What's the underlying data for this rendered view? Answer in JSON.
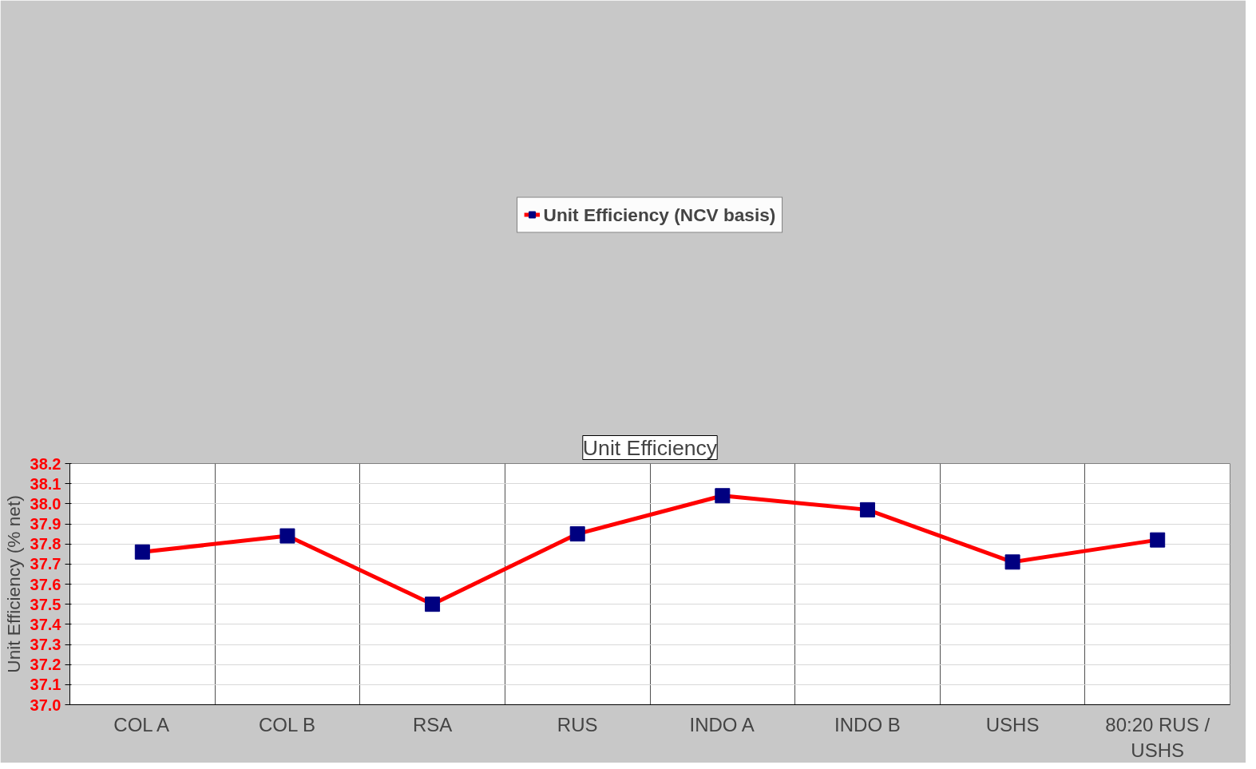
{
  "chart_data": {
    "type": "line",
    "title": "Unit Efficiency",
    "ylabel": "Unit Efficiency (% net)",
    "categories": [
      "COL A",
      "COL B",
      "RSA",
      "RUS",
      "INDO A",
      "INDO B",
      "USHS",
      "80:20 RUS / USHS"
    ],
    "series": [
      {
        "name": "Unit Efficiency (NCV basis)",
        "color": "#ff0000",
        "values": [
          37.76,
          37.84,
          37.5,
          37.85,
          38.04,
          37.97,
          37.71,
          37.82
        ]
      }
    ],
    "ylim": [
      37.0,
      38.2
    ],
    "yticks": [
      {
        "value": 37.0,
        "label": "37.0"
      },
      {
        "value": 37.1,
        "label": "37.1"
      },
      {
        "value": 37.2,
        "label": "37.2"
      },
      {
        "value": 37.3,
        "label": "37.3"
      },
      {
        "value": 37.4,
        "label": "37.4"
      },
      {
        "value": 37.5,
        "label": "37.5"
      },
      {
        "value": 37.6,
        "label": "37.6"
      },
      {
        "value": 37.7,
        "label": "37.7"
      },
      {
        "value": 37.8,
        "label": "37.8"
      },
      {
        "value": 37.9,
        "label": "37.9"
      },
      {
        "value": 38.0,
        "label": "38.0"
      },
      {
        "value": 38.1,
        "label": "38.1"
      },
      {
        "value": 38.2,
        "label": "38.2"
      }
    ],
    "grid": true,
    "legend": "top",
    "marker": "square",
    "line_style": "solid"
  }
}
